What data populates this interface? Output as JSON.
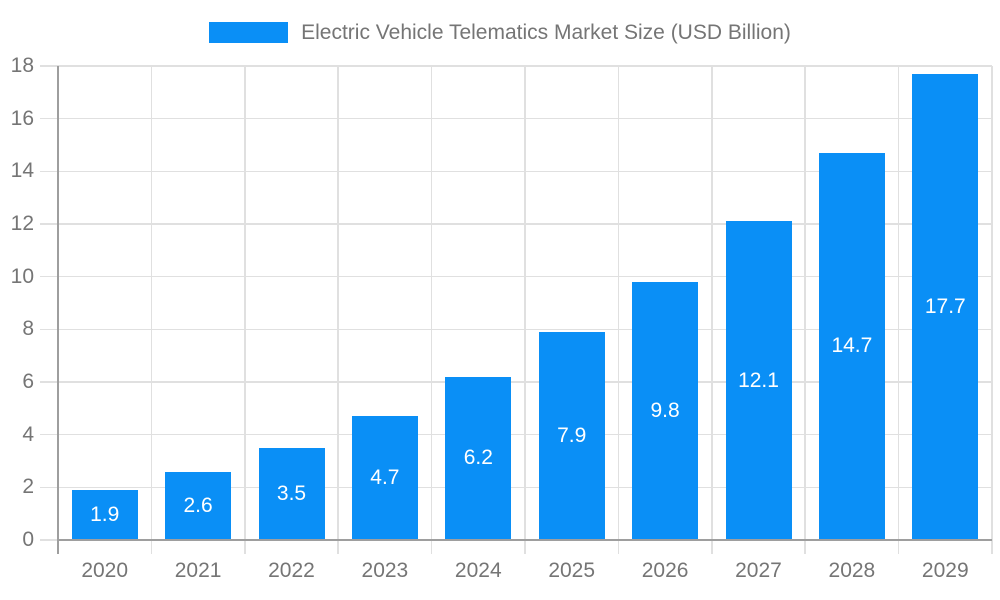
{
  "chart_data": {
    "type": "bar",
    "legend_label": "Electric Vehicle Telematics Market Size (USD Billion)",
    "legend_position": "top",
    "categories": [
      "2020",
      "2021",
      "2022",
      "2023",
      "2024",
      "2025",
      "2026",
      "2027",
      "2028",
      "2029"
    ],
    "values": [
      1.9,
      2.6,
      3.5,
      4.7,
      6.2,
      7.9,
      9.8,
      12.1,
      14.7,
      17.7
    ],
    "value_labels": [
      "1.9",
      "2.6",
      "3.5",
      "4.7",
      "6.2",
      "7.9",
      "9.8",
      "12.1",
      "14.7",
      "17.7"
    ],
    "value_labels_inside_bars": true,
    "title": "",
    "xlabel": "",
    "ylabel": "",
    "ylim": [
      0,
      18
    ],
    "ytick_interval": 2,
    "ytick_labels": [
      "0",
      "2",
      "4",
      "6",
      "8",
      "10",
      "12",
      "14",
      "16",
      "18"
    ],
    "grid": "horizontal-and-vertical",
    "colors": {
      "bar": "#0a8ff6",
      "gridline": "#e0e0e0",
      "axis_line": "#9e9e9e",
      "tick_label": "#757575",
      "legend_text": "#757575",
      "value_label": "#ffffff",
      "background": "#ffffff"
    }
  }
}
